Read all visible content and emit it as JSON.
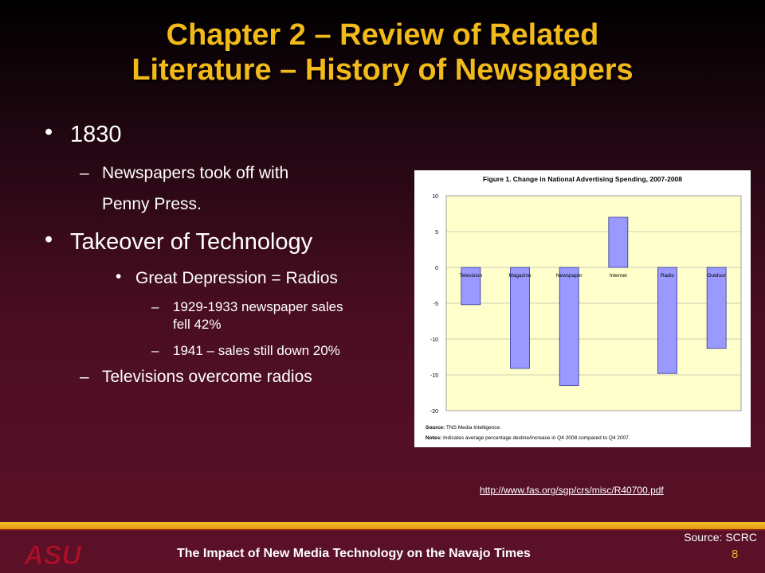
{
  "slide": {
    "title_line1": "Chapter 2 – Review of Related",
    "title_line2": "Literature – History of Newspapers",
    "bullets": {
      "b1830": "1830",
      "b1830_sub_line1": "Newspapers took off with",
      "b1830_sub_line2": "Penny Press.",
      "takeover": "Takeover of Technology",
      "depression": "Great Depression = Radios",
      "sales1_line1": "1929-1933 newspaper sales",
      "sales1_line2": "fell 42%",
      "sales2": "1941 – sales still down 20%",
      "tv": "Televisions overcome radios"
    },
    "bullet_symbol": "•",
    "dash_symbol": "–",
    "link": "http://www.fas.org/sgp/crs/misc/R40700.pdf",
    "source": "Source:  SCRC",
    "footer_title": "The Impact of New Media Technology on the Navajo Times",
    "page_number": "8",
    "logo_text": "ASU"
  },
  "colors": {
    "title": "#f2b91a",
    "chart_bg": "#ffffcc",
    "bar_fill": "#9999ff",
    "bar_stroke": "#333399",
    "footer_gold": "#f0b51a"
  },
  "chart_data": {
    "type": "bar",
    "title": "Figure 1. Change in National Advertising Spending, 2007-2008",
    "categories": [
      "Television",
      "Magazine",
      "Newspaper",
      "Internet",
      "Radio",
      "Outdoor"
    ],
    "values": [
      -5.2,
      -14.1,
      -16.5,
      7.0,
      -14.8,
      -11.3
    ],
    "ylim": [
      -20,
      10
    ],
    "yticks": [
      10,
      5,
      0,
      -5,
      -10,
      -15,
      -20
    ],
    "grid": true,
    "source_label": "Source:",
    "source_text": "TNS Media Intelligence.",
    "notes_label": "Notes:",
    "notes_text": "Indicates average percentage decline/increase in Q4 2008 compared to Q4 2007."
  }
}
